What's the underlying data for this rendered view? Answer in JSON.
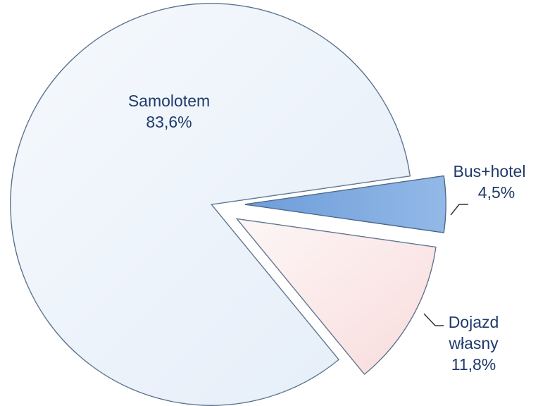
{
  "chart_data": {
    "type": "pie",
    "categories": [
      "Samolotem",
      "Bus+hotel",
      "Dojazd własny"
    ],
    "values": [
      83.6,
      4.5,
      11.8
    ],
    "value_labels": [
      "83,6%",
      "4,5%",
      "11,8%"
    ],
    "colors": [
      "#eef4fb",
      "#7eaae0",
      "#fbeeee"
    ]
  }
}
